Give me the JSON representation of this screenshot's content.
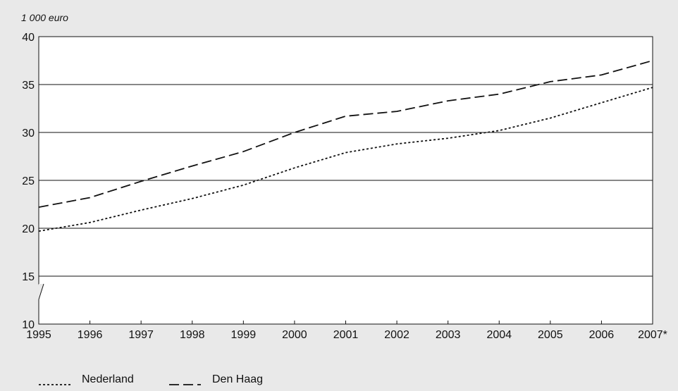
{
  "chart_data": {
    "type": "line",
    "unit_label": "1 000 euro",
    "x": [
      "1995",
      "1996",
      "1997",
      "1998",
      "1999",
      "2000",
      "2001",
      "2002",
      "2003",
      "2004",
      "2005",
      "2006",
      "2007*"
    ],
    "ylim": [
      10,
      40
    ],
    "yticks": [
      "10",
      "15",
      "20",
      "25",
      "30",
      "35",
      "40"
    ],
    "grid": true,
    "legend_position": "bottom-left",
    "series": [
      {
        "name": "Nederland",
        "style": "dotted",
        "values": [
          19.7,
          20.6,
          21.9,
          23.1,
          24.5,
          26.3,
          27.9,
          28.8,
          29.4,
          30.2,
          31.5,
          33.1,
          34.7
        ]
      },
      {
        "name": "Den Haag",
        "style": "dashed",
        "values": [
          22.2,
          23.2,
          24.9,
          26.5,
          28.0,
          30.0,
          31.7,
          32.2,
          33.3,
          34.0,
          35.3,
          36.0,
          37.5
        ]
      }
    ],
    "colors": {
      "line": "#111111",
      "plot_bg": "#ffffff",
      "page_bg": "#e9e9e9",
      "grid": "#111111"
    }
  }
}
